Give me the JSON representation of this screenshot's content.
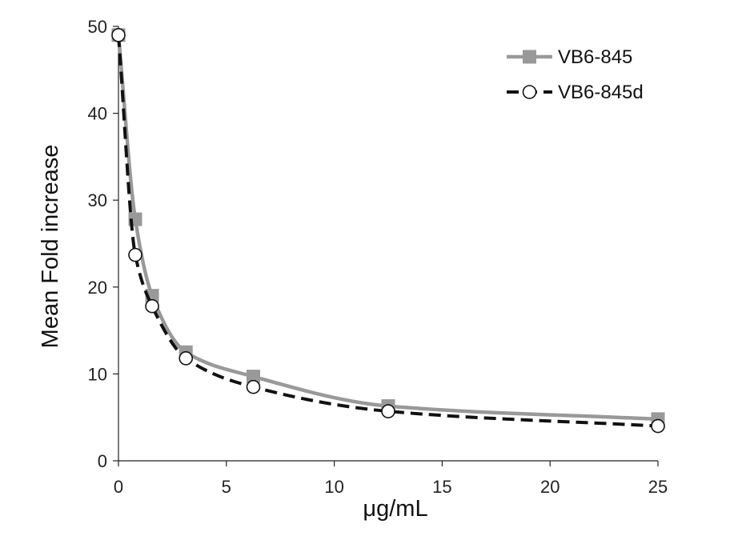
{
  "chart_data": {
    "type": "line",
    "title": "",
    "xlabel": "μg/mL",
    "ylabel": "Mean Fold increase",
    "xlim": [
      0,
      25
    ],
    "ylim": [
      0,
      50
    ],
    "xticks": [
      0,
      5,
      10,
      15,
      20,
      25
    ],
    "yticks": [
      0,
      10,
      20,
      30,
      40,
      50
    ],
    "grid": false,
    "legend_position": "top-right",
    "series": [
      {
        "name": "VB6-845",
        "color": "#999999",
        "marker": "square",
        "line_style": "solid",
        "x": [
          0,
          0.78,
          1.56,
          3.125,
          6.25,
          12.5,
          25
        ],
        "y": [
          49,
          27.8,
          19,
          12.5,
          9.7,
          6.3,
          4.8
        ]
      },
      {
        "name": "VB6-845d",
        "color": "#111111",
        "marker": "open-circle",
        "line_style": "dashed",
        "x": [
          0,
          0.78,
          1.56,
          3.125,
          6.25,
          12.5,
          25
        ],
        "y": [
          49,
          23.7,
          17.8,
          11.8,
          8.5,
          5.7,
          4.0
        ]
      }
    ]
  }
}
